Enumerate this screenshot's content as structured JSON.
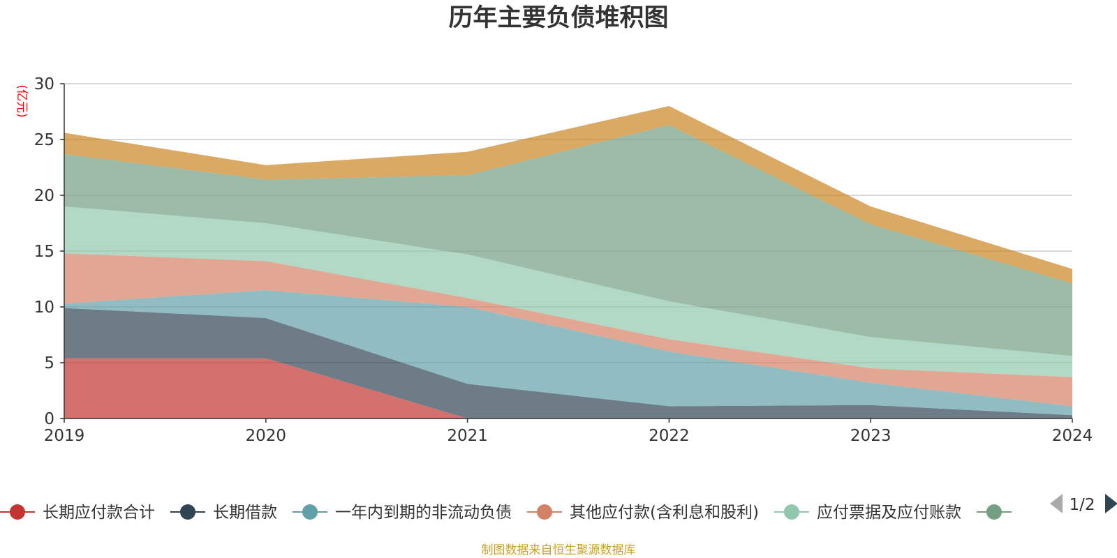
{
  "chart_data": {
    "type": "area",
    "stacked": true,
    "title": "历年主要负债堆积图",
    "unit_label": "(亿元)",
    "x": [
      "2019",
      "2020",
      "2021",
      "2022",
      "2023",
      "2024"
    ],
    "ylim": [
      0,
      30
    ],
    "yticks": [
      0,
      5,
      10,
      15,
      20,
      25,
      30
    ],
    "grid": true,
    "series": [
      {
        "name": "长期应付款合计",
        "color": "#c23531",
        "values": [
          5.4,
          5.4,
          0.0,
          0.0,
          0.0,
          0.0
        ]
      },
      {
        "name": "长期借款",
        "color": "#2f4554",
        "values": [
          4.5,
          3.6,
          3.1,
          1.1,
          1.2,
          0.3
        ]
      },
      {
        "name": "一年内到期的非流动负债",
        "color": "#61a0a8",
        "values": [
          0.4,
          2.5,
          6.9,
          4.9,
          2.0,
          0.8
        ]
      },
      {
        "name": "其他应付款(含利息和股利)",
        "color": "#d48265",
        "values": [
          4.5,
          2.6,
          0.8,
          1.1,
          1.3,
          2.6
        ]
      },
      {
        "name": "应付票据及应付账款",
        "color": "#91c7ae",
        "values": [
          4.2,
          3.4,
          3.9,
          3.4,
          2.8,
          1.9
        ]
      },
      {
        "name": "",
        "color": "#749f83",
        "values": [
          4.7,
          3.9,
          7.1,
          15.8,
          10.1,
          6.5
        ]
      },
      {
        "name": "",
        "color": "#ca8622",
        "values": [
          1.9,
          1.3,
          2.1,
          1.7,
          1.6,
          1.3
        ]
      }
    ]
  },
  "legend": {
    "page": "1/2"
  },
  "source_text": "制图数据来自恒生聚源数据库"
}
